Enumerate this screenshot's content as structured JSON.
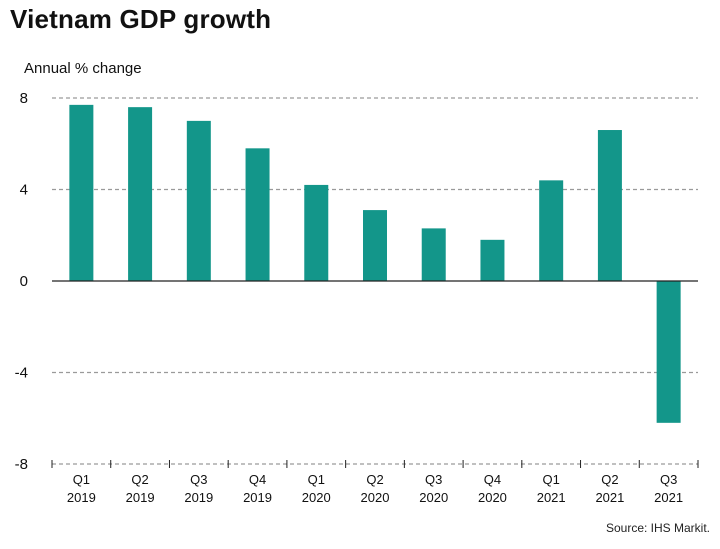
{
  "chart_data": {
    "type": "bar",
    "title": "Vietnam GDP growth",
    "ylabel": "Annual % change",
    "xlabel": "",
    "ylim": [
      -8,
      8
    ],
    "yticks": [
      8,
      4,
      0,
      -4,
      -8
    ],
    "categories": [
      [
        "Q1",
        "2019"
      ],
      [
        "Q2",
        "2019"
      ],
      [
        "Q3",
        "2019"
      ],
      [
        "Q4",
        "2019"
      ],
      [
        "Q1",
        "2020"
      ],
      [
        "Q2",
        "2020"
      ],
      [
        "Q3",
        "2020"
      ],
      [
        "Q4",
        "2020"
      ],
      [
        "Q1",
        "2021"
      ],
      [
        "Q2",
        "2021"
      ],
      [
        "Q3",
        "2021"
      ]
    ],
    "values": [
      7.7,
      7.6,
      7.0,
      5.8,
      4.2,
      3.1,
      2.3,
      1.8,
      4.4,
      6.6,
      -6.2
    ],
    "bar_color": "#13968a",
    "grid_color": "#9a9a9a",
    "source": "Source: IHS Markit."
  }
}
